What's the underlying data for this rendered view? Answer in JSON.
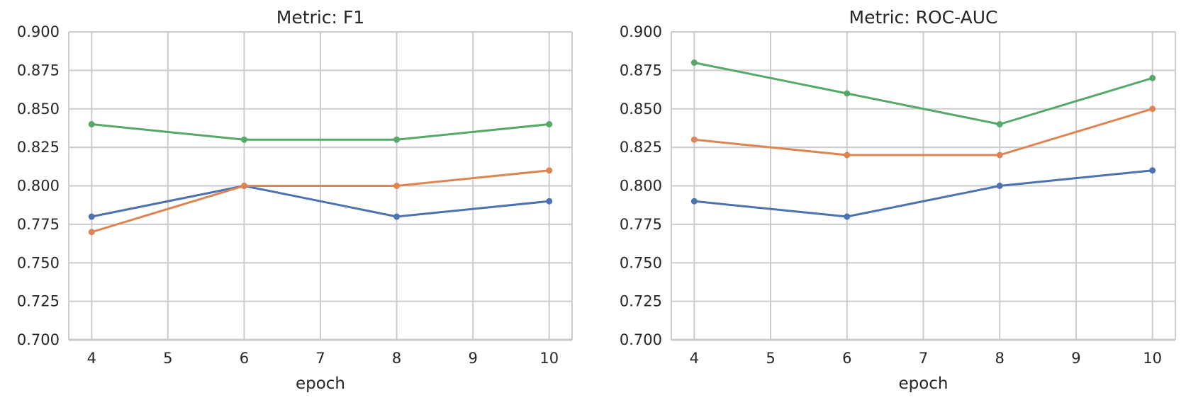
{
  "figure": {
    "background": "#ffffff",
    "text_color": "#262626",
    "grid_color": "#cccccc"
  },
  "chart_data": [
    {
      "type": "line",
      "title": "Metric: F1",
      "xlabel": "epoch",
      "ylabel": "",
      "x": [
        4,
        6,
        8,
        10
      ],
      "xlim": [
        3.7,
        10.3
      ],
      "ylim": [
        0.7,
        0.9
      ],
      "xticks": [
        4,
        5,
        6,
        7,
        8,
        9,
        10
      ],
      "ytick_labels": [
        "0.700",
        "0.725",
        "0.750",
        "0.775",
        "0.800",
        "0.825",
        "0.850",
        "0.875",
        "0.900"
      ],
      "grid": true,
      "legend": false,
      "series": [
        {
          "name": "blue",
          "color": "#4C72B0",
          "values": [
            0.78,
            0.8,
            0.78,
            0.79
          ]
        },
        {
          "name": "orange",
          "color": "#DD8452",
          "values": [
            0.77,
            0.8,
            0.8,
            0.81
          ]
        },
        {
          "name": "green",
          "color": "#55A868",
          "values": [
            0.84,
            0.83,
            0.83,
            0.84
          ]
        }
      ]
    },
    {
      "type": "line",
      "title": "Metric: ROC-AUC",
      "xlabel": "epoch",
      "ylabel": "",
      "x": [
        4,
        6,
        8,
        10
      ],
      "xlim": [
        3.7,
        10.3
      ],
      "ylim": [
        0.7,
        0.9
      ],
      "xticks": [
        4,
        5,
        6,
        7,
        8,
        9,
        10
      ],
      "ytick_labels": [
        "0.700",
        "0.725",
        "0.750",
        "0.775",
        "0.800",
        "0.825",
        "0.850",
        "0.875",
        "0.900"
      ],
      "grid": true,
      "legend": false,
      "series": [
        {
          "name": "blue",
          "color": "#4C72B0",
          "values": [
            0.79,
            0.78,
            0.8,
            0.81
          ]
        },
        {
          "name": "orange",
          "color": "#DD8452",
          "values": [
            0.83,
            0.82,
            0.82,
            0.85
          ]
        },
        {
          "name": "green",
          "color": "#55A868",
          "values": [
            0.88,
            0.86,
            0.84,
            0.87
          ]
        }
      ]
    }
  ]
}
